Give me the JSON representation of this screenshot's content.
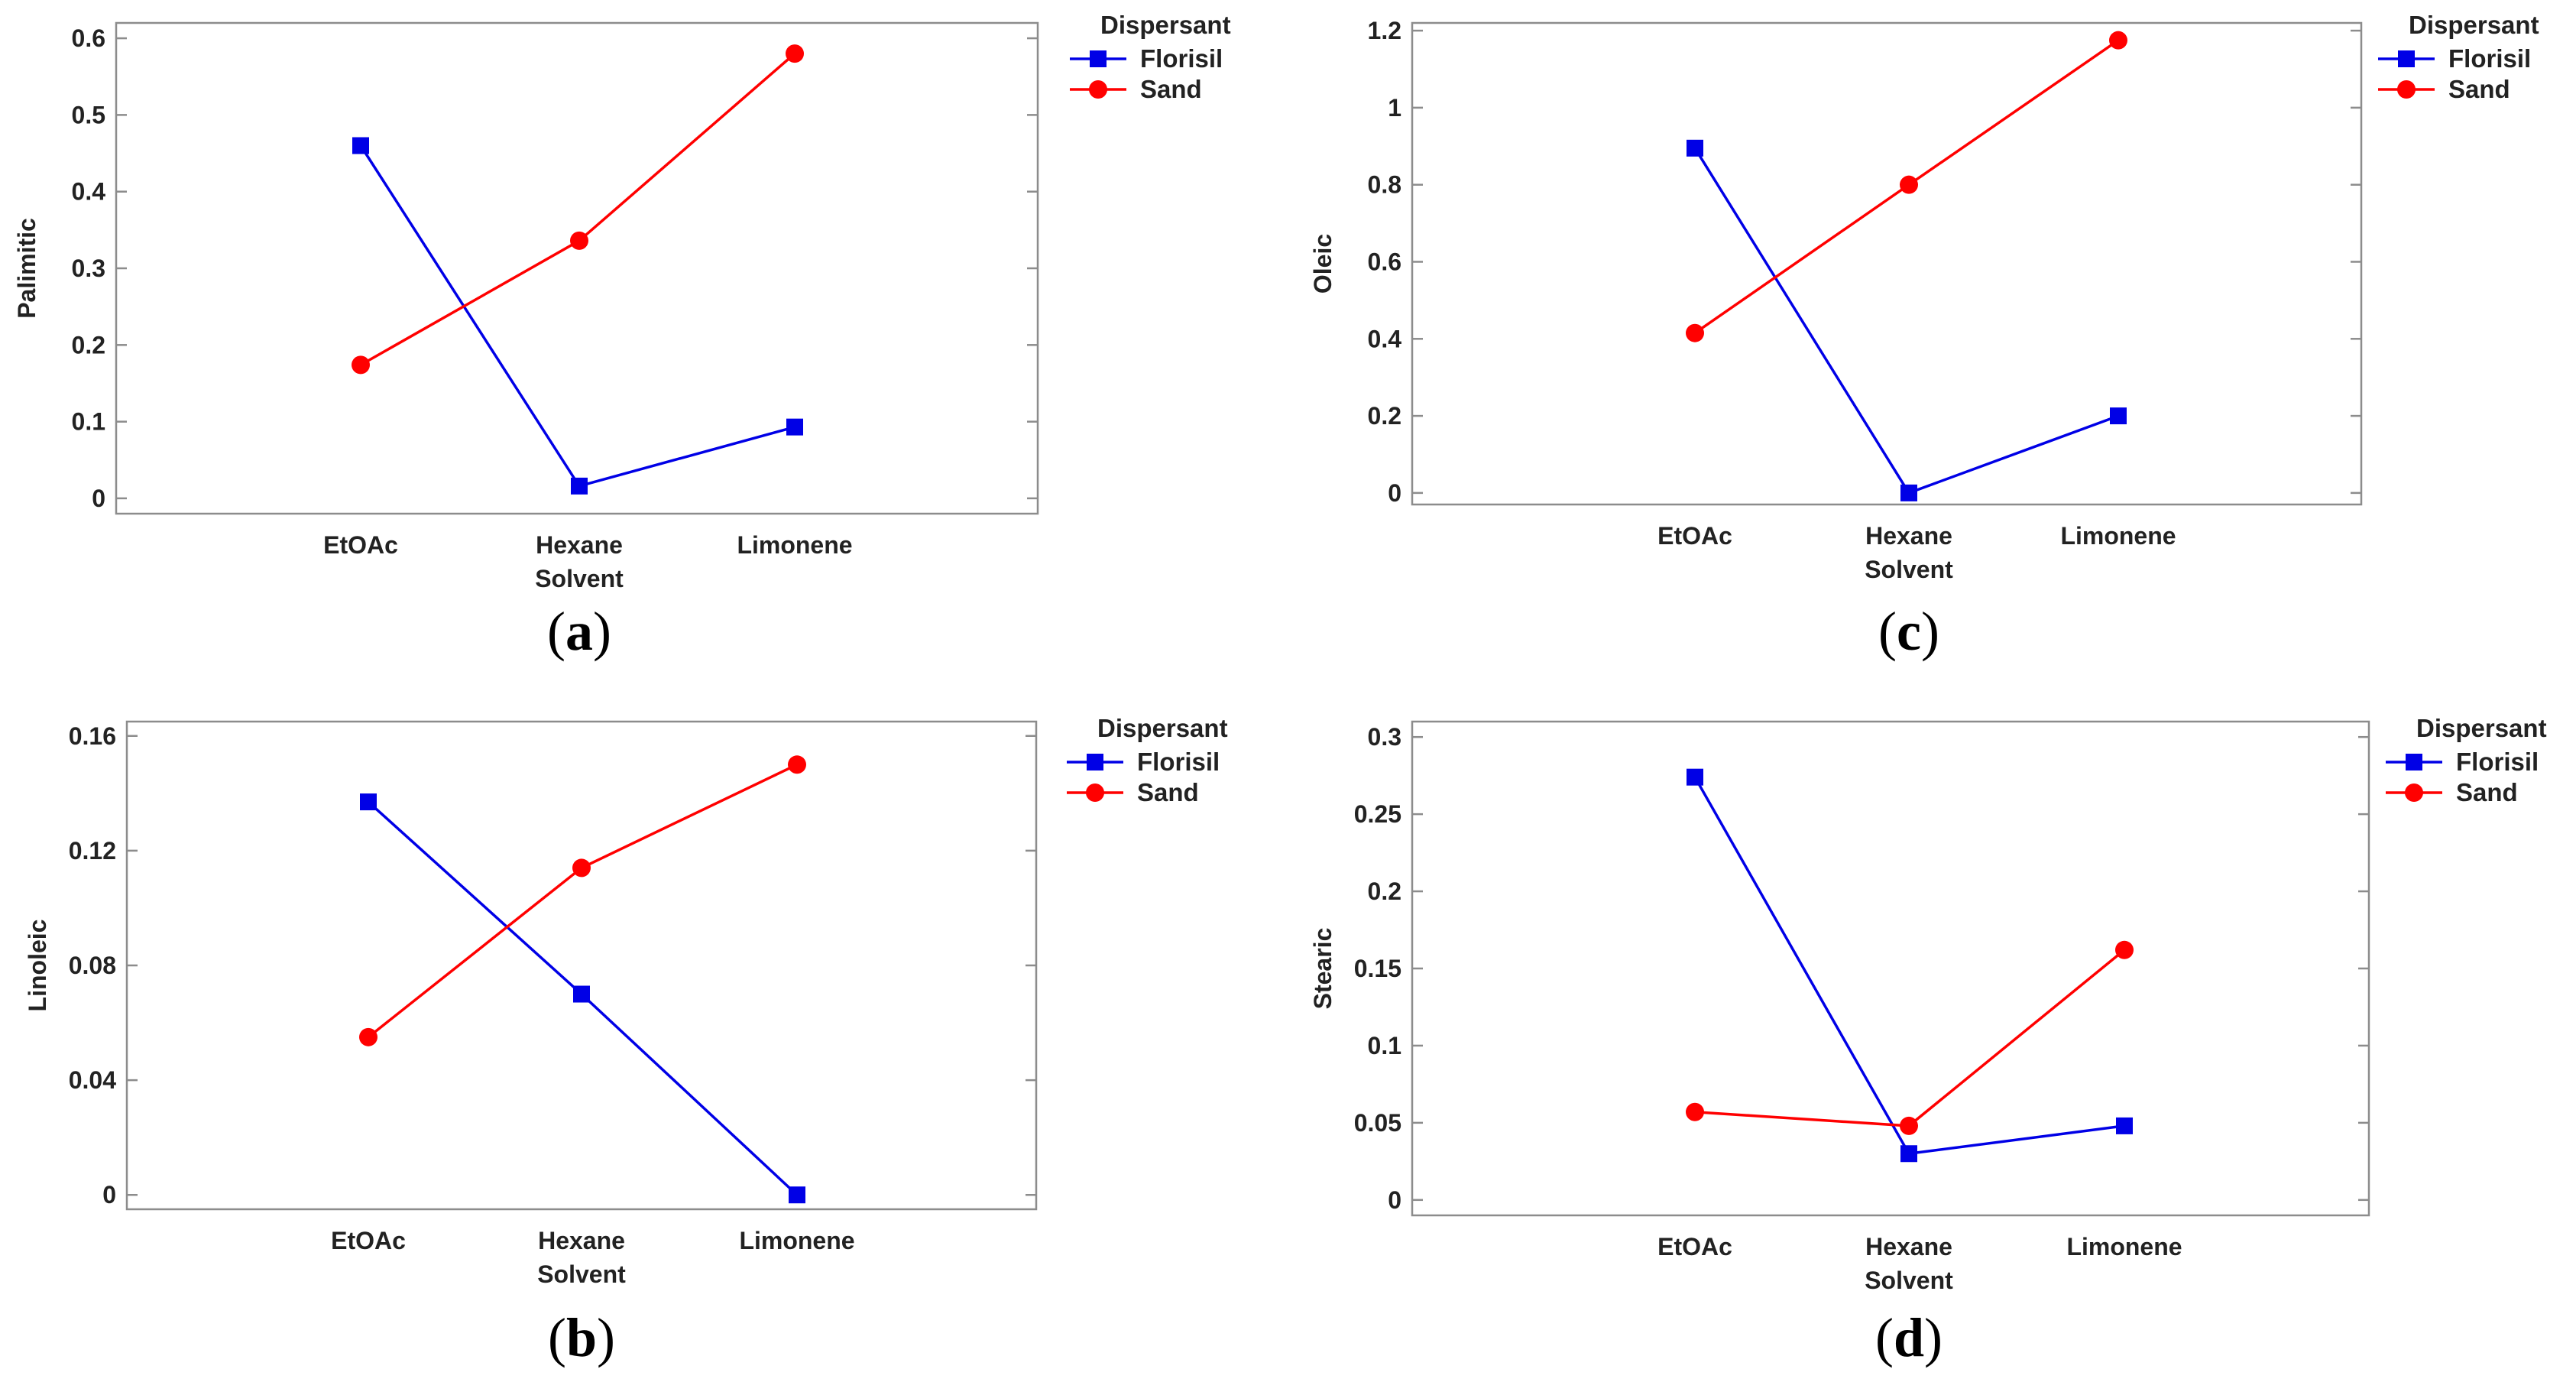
{
  "figure": {
    "colors": {
      "Florisil": "#0000e6",
      "Sand": "#ff0000",
      "frame": "#8c8c8c"
    }
  },
  "chart_data": [
    {
      "id": "a",
      "panel_label": "a",
      "type": "line",
      "ylabel": "Palimitic",
      "xlabel": "Solvent",
      "categories": [
        "EtOAc",
        "Hexane",
        "Limonene"
      ],
      "ylim": [
        -0.02,
        0.62
      ],
      "yticks": [
        0,
        0.1,
        0.2,
        0.3,
        0.4,
        0.5,
        0.6
      ],
      "ytick_labels": [
        "0",
        "0.1",
        "0.2",
        "0.3",
        "0.4",
        "0.5",
        "0.6"
      ],
      "legend_title": "Dispersant",
      "series": [
        {
          "name": "Florisil",
          "marker": "square",
          "values": [
            0.46,
            0.016,
            0.093
          ]
        },
        {
          "name": "Sand",
          "marker": "circle",
          "values": [
            0.174,
            0.336,
            0.58
          ]
        }
      ]
    },
    {
      "id": "b",
      "panel_label": "b",
      "type": "line",
      "ylabel": "Linoleic",
      "xlabel": "Solvent",
      "categories": [
        "EtOAc",
        "Hexane",
        "Limonene"
      ],
      "ylim": [
        -0.005,
        0.165
      ],
      "yticks": [
        0,
        0.04,
        0.08,
        0.12,
        0.16
      ],
      "ytick_labels": [
        "0",
        "0.04",
        "0.08",
        "0.12",
        "0.16"
      ],
      "legend_title": "Dispersant",
      "series": [
        {
          "name": "Florisil",
          "marker": "square",
          "values": [
            0.137,
            0.07,
            0.0
          ]
        },
        {
          "name": "Sand",
          "marker": "circle",
          "values": [
            0.055,
            0.114,
            0.15
          ]
        }
      ]
    },
    {
      "id": "c",
      "panel_label": "c",
      "type": "line",
      "ylabel": "Oleic",
      "xlabel": "Solvent",
      "categories": [
        "EtOAc",
        "Hexane",
        "Limonene"
      ],
      "ylim": [
        -0.03,
        1.22
      ],
      "yticks": [
        0,
        0.2,
        0.4,
        0.6,
        0.8,
        1,
        1.2
      ],
      "ytick_labels": [
        "0",
        "0.2",
        "0.4",
        "0.6",
        "0.8",
        "1",
        "1.2"
      ],
      "legend_title": "Dispersant",
      "series": [
        {
          "name": "Florisil",
          "marker": "square",
          "values": [
            0.895,
            0.0,
            0.2
          ]
        },
        {
          "name": "Sand",
          "marker": "circle",
          "values": [
            0.415,
            0.8,
            1.175
          ]
        }
      ]
    },
    {
      "id": "d",
      "panel_label": "d",
      "type": "line",
      "ylabel": "Stearic",
      "xlabel": "Solvent",
      "categories": [
        "EtOAc",
        "Hexane",
        "Limonene"
      ],
      "ylim": [
        -0.01,
        0.31
      ],
      "yticks": [
        0,
        0.05,
        0.1,
        0.15,
        0.2,
        0.25,
        0.3
      ],
      "ytick_labels": [
        "0",
        "0.05",
        "0.1",
        "0.15",
        "0.2",
        "0.25",
        "0.3"
      ],
      "legend_title": "Dispersant",
      "series": [
        {
          "name": "Florisil",
          "marker": "square",
          "values": [
            0.274,
            0.03,
            0.048
          ]
        },
        {
          "name": "Sand",
          "marker": "circle",
          "values": [
            0.057,
            0.048,
            0.162
          ]
        }
      ]
    }
  ]
}
